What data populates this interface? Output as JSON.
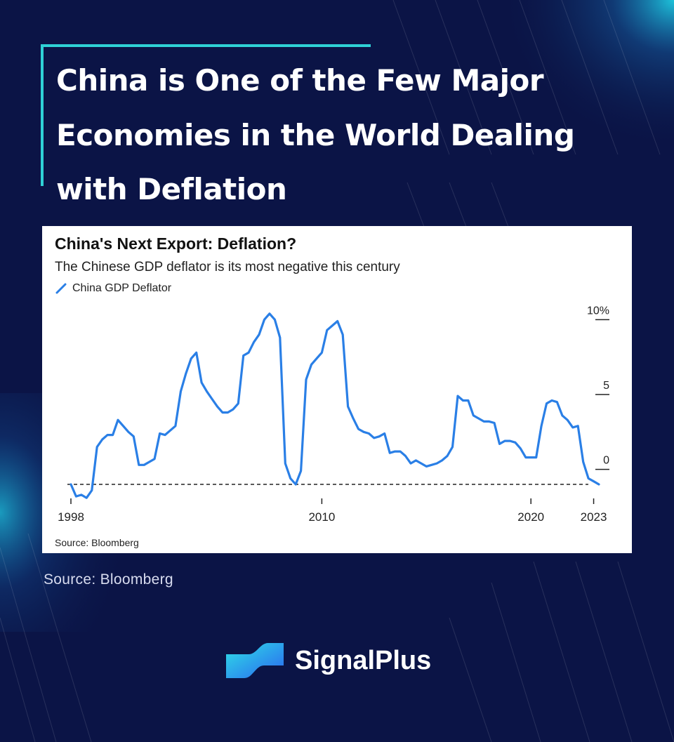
{
  "headline": "China is One of the Few Major Economies in the World Dealing with Deflation",
  "page_source": "Source: Bloomberg",
  "brand": {
    "name": "SignalPlus"
  },
  "colors": {
    "background": "#0b1446",
    "accent_frame": "#2fd1d6",
    "series_line": "#2a7fe6",
    "logo_gradient": [
      "#2fd6e0",
      "#2a6cf0"
    ]
  },
  "chart_data": {
    "type": "line",
    "title": "China's Next Export: Deflation?",
    "subtitle": "The Chinese GDP deflator is its most negative this century",
    "source": "Source: Bloomberg",
    "legend_placement": "top-left",
    "grid": false,
    "series": [
      {
        "name": "China GDP Deflator",
        "points": [
          [
            1998.0,
            -1.0
          ],
          [
            1998.25,
            -1.8
          ],
          [
            1998.5,
            -1.7
          ],
          [
            1998.75,
            -1.9
          ],
          [
            1999.0,
            -1.4
          ],
          [
            1999.25,
            1.5
          ],
          [
            1999.5,
            2.0
          ],
          [
            1999.75,
            2.3
          ],
          [
            2000.0,
            2.3
          ],
          [
            2000.25,
            3.3
          ],
          [
            2000.5,
            2.9
          ],
          [
            2000.75,
            2.5
          ],
          [
            2001.0,
            2.2
          ],
          [
            2001.25,
            0.3
          ],
          [
            2001.5,
            0.3
          ],
          [
            2001.75,
            0.5
          ],
          [
            2002.0,
            0.7
          ],
          [
            2002.25,
            2.4
          ],
          [
            2002.5,
            2.3
          ],
          [
            2002.75,
            2.6
          ],
          [
            2003.0,
            2.9
          ],
          [
            2003.25,
            5.2
          ],
          [
            2003.5,
            6.4
          ],
          [
            2003.75,
            7.4
          ],
          [
            2004.0,
            7.8
          ],
          [
            2004.25,
            5.8
          ],
          [
            2004.5,
            5.2
          ],
          [
            2004.75,
            4.7
          ],
          [
            2005.0,
            4.2
          ],
          [
            2005.25,
            3.8
          ],
          [
            2005.5,
            3.8
          ],
          [
            2005.75,
            4.0
          ],
          [
            2006.0,
            4.4
          ],
          [
            2006.25,
            7.6
          ],
          [
            2006.5,
            7.8
          ],
          [
            2006.75,
            8.5
          ],
          [
            2007.0,
            9.0
          ],
          [
            2007.25,
            10.0
          ],
          [
            2007.5,
            10.4
          ],
          [
            2007.75,
            10.0
          ],
          [
            2008.0,
            8.8
          ],
          [
            2008.25,
            0.4
          ],
          [
            2008.5,
            -0.6
          ],
          [
            2008.75,
            -1.0
          ],
          [
            2009.0,
            -0.1
          ],
          [
            2009.25,
            6.0
          ],
          [
            2009.5,
            7.0
          ],
          [
            2009.75,
            7.4
          ],
          [
            2010.0,
            7.8
          ],
          [
            2010.25,
            9.3
          ],
          [
            2010.5,
            9.6
          ],
          [
            2010.75,
            9.9
          ],
          [
            2011.0,
            9.0
          ],
          [
            2011.25,
            4.2
          ],
          [
            2011.5,
            3.4
          ],
          [
            2011.75,
            2.7
          ],
          [
            2012.0,
            2.5
          ],
          [
            2012.25,
            2.4
          ],
          [
            2012.5,
            2.1
          ],
          [
            2012.75,
            2.2
          ],
          [
            2013.0,
            2.4
          ],
          [
            2013.25,
            1.1
          ],
          [
            2013.5,
            1.2
          ],
          [
            2013.75,
            1.2
          ],
          [
            2014.0,
            0.9
          ],
          [
            2014.25,
            0.4
          ],
          [
            2014.5,
            0.6
          ],
          [
            2014.75,
            0.4
          ],
          [
            2015.0,
            0.2
          ],
          [
            2015.25,
            0.3
          ],
          [
            2015.5,
            0.4
          ],
          [
            2015.75,
            0.6
          ],
          [
            2016.0,
            0.9
          ],
          [
            2016.25,
            1.5
          ],
          [
            2016.5,
            4.9
          ],
          [
            2016.75,
            4.6
          ],
          [
            2017.0,
            4.6
          ],
          [
            2017.25,
            3.6
          ],
          [
            2017.5,
            3.4
          ],
          [
            2017.75,
            3.2
          ],
          [
            2018.0,
            3.2
          ],
          [
            2018.25,
            3.1
          ],
          [
            2018.5,
            1.7
          ],
          [
            2018.75,
            1.9
          ],
          [
            2019.0,
            1.9
          ],
          [
            2019.25,
            1.8
          ],
          [
            2019.5,
            1.4
          ],
          [
            2019.75,
            0.8
          ],
          [
            2020.0,
            0.8
          ],
          [
            2020.25,
            0.8
          ],
          [
            2020.5,
            2.9
          ],
          [
            2020.75,
            4.4
          ],
          [
            2021.0,
            4.6
          ],
          [
            2021.25,
            4.5
          ],
          [
            2021.5,
            3.6
          ],
          [
            2021.75,
            3.3
          ],
          [
            2022.0,
            2.8
          ],
          [
            2022.25,
            2.9
          ],
          [
            2022.5,
            0.5
          ],
          [
            2022.75,
            -0.6
          ],
          [
            2023.0,
            -0.8
          ],
          [
            2023.25,
            -1.0
          ]
        ]
      }
    ],
    "x_ticks": [
      1998,
      2010,
      2020,
      2023
    ],
    "y_ticks": [
      {
        "value": 10,
        "label": "10%"
      },
      {
        "value": 5,
        "label": "5"
      },
      {
        "value": 0,
        "label": "0"
      }
    ],
    "xlim": [
      1998,
      2024
    ],
    "ylim": [
      -1.0,
      11.0
    ],
    "reference_line": {
      "y": -1.0,
      "style": "dashed"
    }
  }
}
